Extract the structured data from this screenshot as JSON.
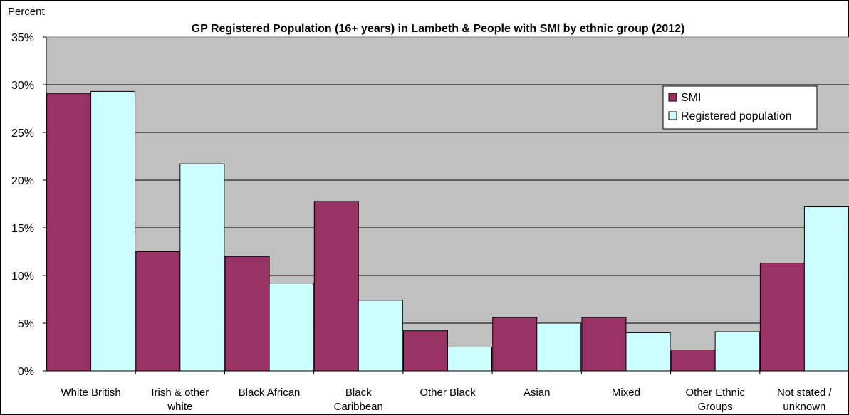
{
  "chart_data": {
    "type": "bar",
    "title": "GP Registered Population (16+ years) in Lambeth & People with SMI by ethnic group (2012)",
    "ylabel": "Percent",
    "xlabel": "",
    "ylim": [
      0,
      35
    ],
    "yticks": [
      "0%",
      "5%",
      "10%",
      "15%",
      "20%",
      "25%",
      "30%",
      "35%"
    ],
    "ytick_values": [
      0,
      5,
      10,
      15,
      20,
      25,
      30,
      35
    ],
    "grid": true,
    "legend_position": "top-right",
    "categories": [
      [
        "White British"
      ],
      [
        "Irish & other",
        "white"
      ],
      [
        "Black African"
      ],
      [
        "Black",
        "Caribbean"
      ],
      [
        "Other Black"
      ],
      [
        "Asian"
      ],
      [
        "Mixed"
      ],
      [
        "Other Ethnic",
        "Groups"
      ],
      [
        "Not stated /",
        "unknown"
      ]
    ],
    "series": [
      {
        "name": "SMI",
        "color": "#993366",
        "values": [
          29.1,
          12.5,
          12.0,
          17.8,
          4.2,
          5.6,
          5.6,
          2.2,
          11.3
        ]
      },
      {
        "name": "Registered population",
        "color": "#ccffff",
        "values": [
          29.3,
          21.7,
          9.2,
          7.4,
          2.5,
          5.0,
          4.0,
          4.1,
          17.2
        ]
      }
    ],
    "plot_background": "#c0c0c0"
  }
}
